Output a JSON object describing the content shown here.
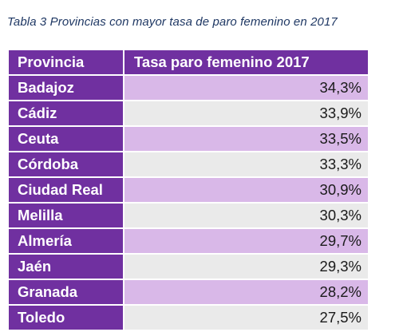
{
  "caption": "Tabla 3 Provincias con mayor tasa de paro femenino en 2017",
  "colors": {
    "header_purple": "#7030a0",
    "row_light_purple": "#d9b8e8",
    "row_light_gray": "#eaeaea",
    "caption_text": "#1f3864"
  },
  "table": {
    "headers": [
      "Provincia",
      "Tasa paro femenino 2017"
    ],
    "rows": [
      {
        "provincia": "Badajoz",
        "tasa": "34,3%"
      },
      {
        "provincia": "Cádiz",
        "tasa": "33,9%"
      },
      {
        "provincia": "Ceuta",
        "tasa": "33,5%"
      },
      {
        "provincia": "Córdoba",
        "tasa": "33,3%"
      },
      {
        "provincia": "Ciudad Real",
        "tasa": "30,9%"
      },
      {
        "provincia": "Melilla",
        "tasa": "30,3%"
      },
      {
        "provincia": "Almería",
        "tasa": "29,7%"
      },
      {
        "provincia": "Jaén",
        "tasa": "29,3%"
      },
      {
        "provincia": "Granada",
        "tasa": "28,2%"
      },
      {
        "provincia": "Toledo",
        "tasa": "27,5%"
      }
    ]
  }
}
